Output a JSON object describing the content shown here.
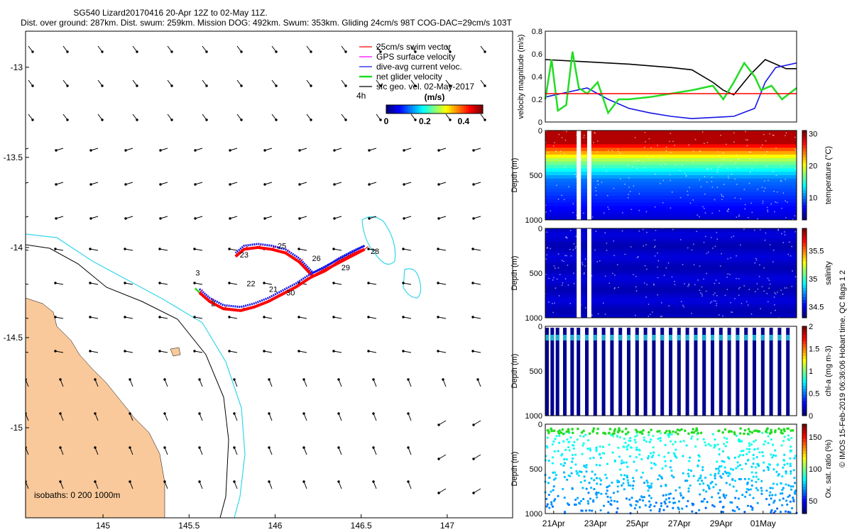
{
  "header": {
    "line1": "SG540 Lizard20170416 20-Apr 12Z to 02-May 11Z.",
    "line2": "Dist. over ground: 287km. Dist. swum: 259km. Mission DOG: 492km. Swum: 353km. Gliding 24cm/s 98T COG-DAC=29cm/s 103T"
  },
  "colors": {
    "land": "#f9c99b",
    "isobath_200": "#000000",
    "isobath_1000": "#33d6ec",
    "track_red": "#ff0000",
    "track_blue": "#1414e6",
    "gps_magenta": "#ff00ff",
    "net_green": "#22dd22",
    "threshold_red": "#ff0000",
    "series_black": "#000000",
    "series_blue": "#1414e6",
    "series_green": "#22dd22"
  },
  "chart_data": [
    {
      "id": "map",
      "type": "scatter",
      "x_ticks": [
        "145",
        "145.5",
        "146",
        "146.5",
        "147"
      ],
      "y_ticks": [
        "-13",
        "-13.5",
        "-14",
        "-14.5",
        "-15"
      ],
      "xlim": [
        144.55,
        147.38
      ],
      "ylim": [
        -15.5,
        -12.8
      ],
      "legend": {
        "placement": "top-right",
        "entries": [
          "25cm/s swim vector",
          "GPS surface velocity",
          "dive-avg current veloc.",
          "net glider velocity",
          "sfc geo. vel. 02-May-2017"
        ]
      },
      "time_label": "4h",
      "colorbar": {
        "title": "(m/s)",
        "ticks": [
          "0",
          "0.2",
          "0.4"
        ],
        "range": [
          0,
          0.5
        ]
      },
      "isobath_label": "isobaths: 0   200  1000m",
      "track_labels": [
        {
          "text": "3",
          "lon": 145.55,
          "lat": -14.14
        },
        {
          "text": "2",
          "lon": 145.64,
          "lat": -14.31
        },
        {
          "text": "23",
          "lon": 145.82,
          "lat": -14.04
        },
        {
          "text": "25",
          "lon": 146.04,
          "lat": -13.99
        },
        {
          "text": "26",
          "lon": 146.24,
          "lat": -14.06
        },
        {
          "text": "22",
          "lon": 145.86,
          "lat": -14.2
        },
        {
          "text": "21",
          "lon": 145.99,
          "lat": -14.23
        },
        {
          "text": "30",
          "lon": 146.09,
          "lat": -14.25
        },
        {
          "text": "29",
          "lon": 146.41,
          "lat": -14.11
        },
        {
          "text": "28",
          "lon": 146.58,
          "lat": -14.02
        }
      ],
      "track": [
        [
          145.56,
          -14.25
        ],
        [
          145.62,
          -14.3
        ],
        [
          145.7,
          -14.34
        ],
        [
          145.8,
          -14.35
        ],
        [
          145.88,
          -14.33
        ],
        [
          145.96,
          -14.3
        ],
        [
          146.04,
          -14.26
        ],
        [
          146.12,
          -14.22
        ],
        [
          146.2,
          -14.17
        ],
        [
          146.28,
          -14.13
        ],
        [
          146.36,
          -14.09
        ],
        [
          146.44,
          -14.05
        ],
        [
          146.52,
          -14.01
        ],
        [
          146.45,
          -14.04
        ],
        [
          146.37,
          -14.08
        ],
        [
          146.29,
          -14.13
        ],
        [
          146.22,
          -14.16
        ],
        [
          146.14,
          -14.08
        ],
        [
          146.06,
          -14.03
        ],
        [
          145.98,
          -14.01
        ],
        [
          145.9,
          -14.0
        ],
        [
          145.82,
          -14.01
        ],
        [
          145.77,
          -14.05
        ]
      ]
    },
    {
      "id": "velocity",
      "type": "line",
      "ylabel": "velocity magnitude (m/s)",
      "ylim": [
        0,
        0.8
      ],
      "y_ticks": [
        "0",
        "0.2",
        "0.4",
        "0.6",
        "0.8"
      ],
      "threshold": 0.25,
      "series": [
        {
          "color": "#000000",
          "x": [
            0,
            2,
            4,
            6,
            7,
            8,
            8.5,
            9,
            9.8,
            10.5,
            11.5,
            12
          ],
          "y": [
            0.55,
            0.53,
            0.51,
            0.48,
            0.46,
            0.35,
            0.28,
            0.24,
            0.42,
            0.55,
            0.47,
            0.47
          ]
        },
        {
          "color": "#1414e6",
          "x": [
            0,
            1,
            2,
            3,
            4,
            5,
            6,
            7,
            8,
            9,
            10,
            10.5,
            11,
            11.5,
            12
          ],
          "y": [
            0.22,
            0.26,
            0.3,
            0.2,
            0.12,
            0.08,
            0.05,
            0.03,
            0.04,
            0.05,
            0.12,
            0.35,
            0.48,
            0.5,
            0.52
          ]
        },
        {
          "color": "#22dd22",
          "x": [
            0,
            0.3,
            0.6,
            1,
            1.3,
            1.6,
            2,
            2.5,
            3,
            3.5,
            4,
            5,
            6,
            7,
            7.5,
            8,
            8.5,
            9,
            9.5,
            10,
            10.3,
            10.8,
            11.3,
            12
          ],
          "y": [
            0.2,
            0.55,
            0.1,
            0.15,
            0.62,
            0.3,
            0.25,
            0.35,
            0.08,
            0.2,
            0.2,
            0.22,
            0.25,
            0.28,
            0.3,
            0.32,
            0.2,
            0.35,
            0.52,
            0.4,
            0.28,
            0.32,
            0.2,
            0.3
          ]
        }
      ]
    },
    {
      "id": "temperature",
      "type": "heatmap",
      "ylabel": "Depth (m)",
      "cbar_label": "temperature (°C)",
      "y_ticks": [
        "0",
        "500",
        "1000"
      ],
      "cbar_ticks": [
        "10",
        "20",
        "30"
      ],
      "cbar_range": [
        3,
        31
      ],
      "gaps": [
        1.6,
        2.1
      ]
    },
    {
      "id": "salinity",
      "type": "heatmap",
      "ylabel": "Depth (m)",
      "cbar_label": "salinity",
      "y_ticks": [
        "0",
        "500",
        "1000"
      ],
      "cbar_ticks": [
        "34.5",
        "35",
        "35.5"
      ],
      "cbar_range": [
        34.3,
        35.9
      ],
      "gaps": [
        1.6,
        2.1
      ]
    },
    {
      "id": "chla",
      "type": "heatmap",
      "ylabel": "Depth (m)",
      "cbar_label": "chl-a (mg m-3)",
      "y_ticks": [
        "0",
        "500",
        "1000"
      ],
      "cbar_ticks": [
        "0",
        "0.5",
        "1",
        "1.5",
        "2"
      ],
      "cbar_range": [
        0,
        2
      ]
    },
    {
      "id": "oxygen",
      "type": "heatmap",
      "ylabel": "Depth (m)",
      "cbar_label": "Ox. sat. ratio (%)",
      "y_ticks": [
        "0",
        "500",
        "1000"
      ],
      "cbar_ticks": [
        "50",
        "100",
        "150"
      ],
      "cbar_range": [
        30,
        170
      ]
    }
  ],
  "time_ticks": [
    "21Apr",
    "23Apr",
    "25Apr",
    "27Apr",
    "29Apr",
    "01May"
  ],
  "footer": "© IMOS 15-Feb-2019 06:36:06 Hobart time. QC flags 1  2"
}
